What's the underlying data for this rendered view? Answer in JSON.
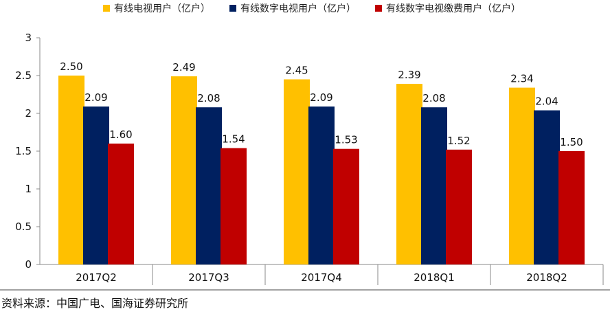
{
  "chart_data": {
    "type": "bar",
    "categories": [
      "2017Q2",
      "2017Q3",
      "2017Q4",
      "2018Q1",
      "2018Q2"
    ],
    "series": [
      {
        "name": "有线电视用户（亿户）",
        "color": "#FFC000",
        "values": [
          2.5,
          2.49,
          2.45,
          2.39,
          2.34
        ]
      },
      {
        "name": "有线数字电视用户（亿户）",
        "color": "#002060",
        "values": [
          2.09,
          2.08,
          2.09,
          2.08,
          2.04
        ]
      },
      {
        "name": "有线数字电视缴费用户（亿户）",
        "color": "#C00000",
        "values": [
          1.6,
          1.54,
          1.53,
          1.52,
          1.5
        ]
      }
    ],
    "ylim": [
      0,
      3
    ],
    "yticks": [
      "0",
      "0.5",
      "1",
      "1.5",
      "2",
      "2.5",
      "3"
    ],
    "legend_position": "top",
    "grid": false
  },
  "source": "资料来源：中国广电、国海证券研究所"
}
